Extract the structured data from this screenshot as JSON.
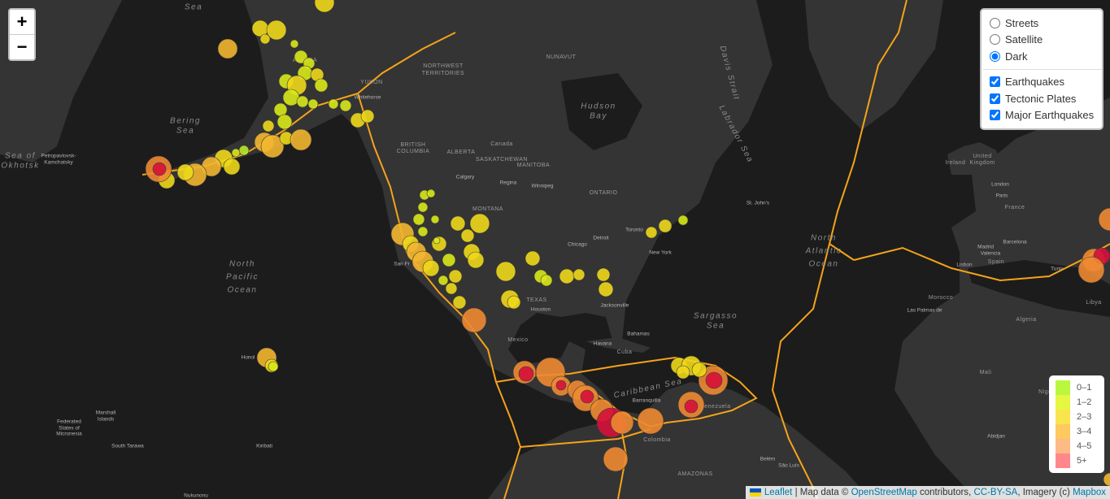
{
  "zoom": {
    "in": "+",
    "out": "−"
  },
  "layers": {
    "base": [
      "Streets",
      "Satellite",
      "Dark"
    ],
    "base_selected": 2,
    "overlays": [
      "Earthquakes",
      "Tectonic Plates",
      "Major Earthquakes"
    ]
  },
  "legend": {
    "items": [
      {
        "label": "0–1",
        "color": "#a3f600"
      },
      {
        "label": "1–2",
        "color": "#dcf400"
      },
      {
        "label": "2–3",
        "color": "#f7db11"
      },
      {
        "label": "3–4",
        "color": "#fdb72a"
      },
      {
        "label": "4–5",
        "color": "#fca35d"
      },
      {
        "label": "5+",
        "color": "#ff5f65"
      }
    ]
  },
  "attribution": {
    "leaflet": "Leaflet",
    "t1": " | Map data © ",
    "osm": "OpenStreetMap",
    "t2": " contributors, ",
    "license": "CC-BY-SA",
    "t3": ", Imagery (c) ",
    "mapbox": "Mapbox"
  },
  "map_labels": {
    "seas": [
      "Sea",
      "Bering",
      "Sea",
      "Sea of",
      "Okhotsk",
      "North",
      "Pacific",
      "Ocean",
      "Hudson",
      "Bay",
      "North",
      "Atlantic",
      "Ocean",
      "Sargasso",
      "Sea",
      "Caribbean Sea",
      "Labrador Sea",
      "Davis Strait"
    ],
    "regions": [
      "ALASKA",
      "YUKON",
      "NORTHWEST",
      "TERRITORIES",
      "NUNAVUT",
      "BRITISH",
      "COLUMBIA",
      "ALBERTA",
      "SASKATCHEWAN",
      "MANITOBA",
      "ONTARIO",
      "MONTANA",
      "TEXAS",
      "Canada",
      "Mexico",
      "Cuba",
      "Colombia",
      "Venezuela",
      "AMAZONAS",
      "Ireland",
      "United",
      "Kingdom",
      "France",
      "Spain",
      "Morocco",
      "Algeria",
      "Mali",
      "Libya",
      "Nigeria"
    ],
    "cities": [
      "Petropavlovsk-",
      "Kamchatsky",
      "Whitehorse",
      "Calgary",
      "Regina",
      "Winnipeg",
      "St. John's",
      "Toronto",
      "Detroit",
      "Chicago",
      "New York",
      "Houston",
      "Jacksonville",
      "San Fr",
      "Havana",
      "Bahamas",
      "Honol",
      "Barranquilla",
      "Belém",
      "São Luís",
      "London",
      "Paris",
      "Madrid",
      "Barcelona",
      "Lisbon",
      "Valencia",
      "Las Palmas de",
      "Tunis",
      "Marshall",
      "Islands",
      "Federated",
      "States of",
      "Micronesia",
      "South Tarawa",
      "Kiribati",
      "Nukunonu",
      "Abidjan"
    ]
  }
}
